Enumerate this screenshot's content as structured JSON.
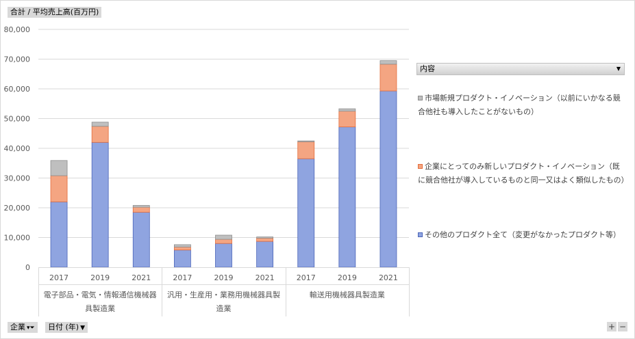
{
  "pivot": {
    "measure_label": "合計 / 平均売上高(百万円)",
    "legend_field_label": "内容",
    "filter_label": "企業",
    "row_field_label": "日付 (年)",
    "zoom_in": "+",
    "zoom_out": "−"
  },
  "chart_data": {
    "type": "bar",
    "stacked": true,
    "title": "",
    "xlabel": "",
    "ylabel": "",
    "ylim": [
      0,
      80000
    ],
    "yticks": [
      "0",
      "10,000",
      "20,000",
      "30,000",
      "40,000",
      "50,000",
      "60,000",
      "70,000",
      "80,000"
    ],
    "grid": true,
    "legend_position": "right",
    "groups": [
      {
        "label": "電子部品・電気・情報通信機械器具製造業",
        "years": [
          "2017",
          "2019",
          "2021"
        ]
      },
      {
        "label": "汎用・生産用・業務用機械器具製造業",
        "years": [
          "2017",
          "2019",
          "2021"
        ]
      },
      {
        "label": "輸送用機械器具製造業",
        "years": [
          "2017",
          "2019",
          "2021"
        ]
      }
    ],
    "series": [
      {
        "name": "その他のプロダクト全て（変更がなかったプロダクト等）",
        "color": "#8fa4e0",
        "values": [
          22000,
          42000,
          18500,
          5800,
          8000,
          8700,
          36500,
          47200,
          59300
        ]
      },
      {
        "name": "企業にとってのみ新しいプロダクト・イノベーション（既に競合他社が導入しているものと同一又はよく類似したもの）",
        "color": "#f4a582",
        "values": [
          8800,
          5400,
          1700,
          1000,
          1400,
          1100,
          5700,
          5300,
          9000
        ]
      },
      {
        "name": "市場新規プロダクト・イノベーション（以前にいかなる競合他社も導入したことがないもの）",
        "color": "#bfbfbf",
        "values": [
          5100,
          1400,
          600,
          800,
          1400,
          400,
          300,
          800,
          1200
        ]
      }
    ]
  }
}
